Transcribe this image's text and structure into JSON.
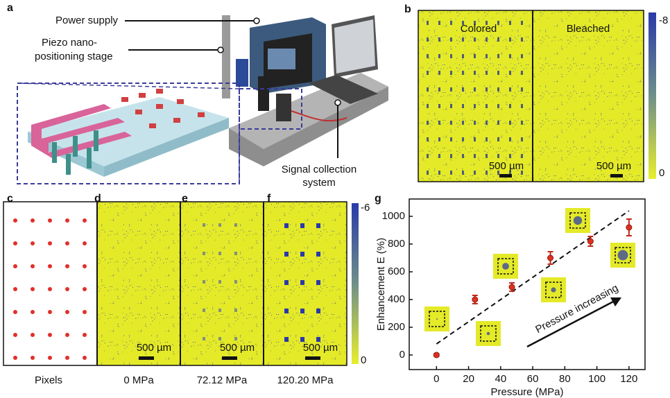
{
  "figure": {
    "a": {
      "label": "a",
      "power_supply": "Power supply",
      "stage": [
        "Piezo nano-",
        "positioning stage"
      ],
      "signal": [
        "Signal collection",
        "system"
      ]
    },
    "b": {
      "label": "b",
      "colored": "Colored",
      "bleached": "Bleached",
      "scale_bars": [
        "500 µm",
        "500 µm"
      ],
      "colorbar": [
        "-8",
        "0"
      ]
    },
    "c": {
      "label": "c",
      "caption": "Pixels"
    },
    "d": {
      "label": "d",
      "caption": "0 MPa",
      "scale_bar": "500 µm"
    },
    "e": {
      "label": "e",
      "caption": "72.12 MPa",
      "scale_bar": "500 µm"
    },
    "f": {
      "label": "f",
      "caption": "120.20 MPa",
      "scale_bar": "500 µm"
    },
    "colorbar_cf": [
      "-6",
      "0"
    ]
  },
  "chart_data": {
    "type": "scatter",
    "panel_label": "g",
    "xlabel": "Pressure (MPa)",
    "ylabel": "Enhancement E (%)",
    "annotation": "Pressure increasing",
    "x": [
      0,
      24,
      47,
      71,
      96,
      120
    ],
    "series": [
      {
        "color": "#e03020",
        "values": [
          0,
          400,
          490,
          700,
          820,
          920
        ],
        "errors": [
          10,
          30,
          30,
          45,
          35,
          60
        ]
      }
    ],
    "trend": {
      "x": [
        0,
        120
      ],
      "values": [
        80,
        1040
      ]
    },
    "xlim": [
      -17,
      130
    ],
    "xticks": [
      0,
      20,
      40,
      60,
      80,
      100,
      120
    ],
    "ylim": [
      -105,
      1125
    ],
    "yticks": [
      0,
      200,
      400,
      600,
      800,
      1000
    ]
  }
}
